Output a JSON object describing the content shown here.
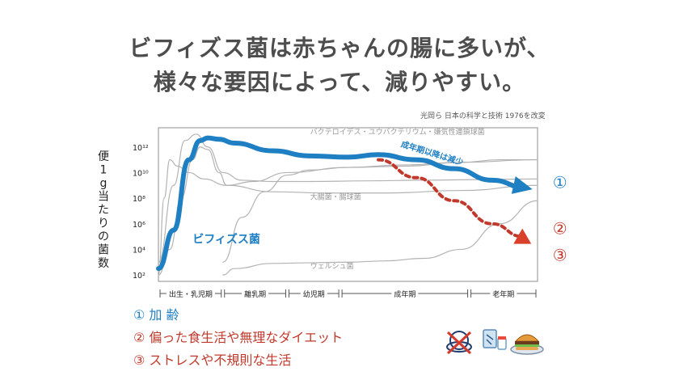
{
  "title": {
    "line1": "ビフィズス菌は赤ちゃんの腸に多いが、",
    "line2": "様々な要因によって、減りやすい。"
  },
  "source": "光岡ら 日本の科学と技術 1976を改変",
  "chart_data": {
    "type": "line",
    "ylabel": "便1g当たりの菌数",
    "y_scale": "log",
    "y_ticks": [
      {
        "exp": 12,
        "label": "10¹²"
      },
      {
        "exp": 10,
        "label": "10¹⁰"
      },
      {
        "exp": 8,
        "label": "10⁸"
      },
      {
        "exp": 6,
        "label": "10⁶"
      },
      {
        "exp": 4,
        "label": "10⁴"
      },
      {
        "exp": 2,
        "label": "10²"
      }
    ],
    "ylim": [
      1.5,
      13.5
    ],
    "xlim": [
      0,
      100
    ],
    "age_periods": [
      {
        "label": "出生・乳児期",
        "start": 0,
        "end": 17
      },
      {
        "label": "離乳期",
        "start": 17,
        "end": 34
      },
      {
        "label": "幼児期",
        "start": 34,
        "end": 48
      },
      {
        "label": "成年期",
        "start": 48,
        "end": 82
      },
      {
        "label": "老年期",
        "start": 82,
        "end": 100
      }
    ],
    "series": [
      {
        "name": "バクテロイデス・ユウバクテリウム・嫌気性連鎖球菌",
        "color": "#b3b3b3",
        "x": [
          0,
          3,
          6,
          9,
          11,
          13,
          16,
          18,
          25,
          34,
          50,
          65,
          80,
          90,
          100
        ],
        "y": [
          2.0,
          4.0,
          8.0,
          11.0,
          12.0,
          11.8,
          10.0,
          9.0,
          9.3,
          10.0,
          10.4,
          10.5,
          10.8,
          11.0,
          11.0
        ]
      },
      {
        "name": "",
        "color": "#b3b3b3",
        "x": [
          0,
          4,
          7,
          10,
          13,
          17,
          22,
          30,
          40,
          55,
          70,
          85,
          100
        ],
        "y": [
          3.0,
          9.0,
          12.5,
          13.0,
          12.0,
          10.0,
          9.4,
          9.3,
          9.3,
          9.35,
          9.4,
          9.45,
          9.5
        ]
      },
      {
        "name": "大腸菌・腸球菌",
        "color": "#b3b3b3",
        "x": [
          0,
          1.5,
          3,
          5,
          8,
          12,
          18,
          30,
          45,
          60,
          80,
          100
        ],
        "y": [
          2.0,
          8.0,
          11.0,
          10.5,
          10.0,
          9.5,
          9.0,
          8.5,
          8.4,
          8.4,
          8.6,
          9.0
        ]
      },
      {
        "name": "",
        "color": "#b3b3b3",
        "x": [
          17,
          22,
          28,
          34,
          40,
          50,
          65,
          80,
          100
        ],
        "y": [
          3.0,
          6.5,
          8.5,
          9.8,
          10.2,
          10.4,
          10.6,
          10.8,
          11.0
        ]
      },
      {
        "name": "ウェルシュ菌",
        "color": "#b3b3b3",
        "x": [
          17,
          20,
          30,
          40,
          50,
          60,
          70,
          80,
          90,
          100
        ],
        "y": [
          2.0,
          2.5,
          2.9,
          2.95,
          3.0,
          3.1,
          3.3,
          4.0,
          6.0,
          7.8
        ]
      },
      {
        "name": "ビフィズス菌",
        "color": "#1f7fc3",
        "width": 6,
        "x": [
          0,
          4,
          8,
          11,
          13,
          16,
          20,
          30,
          40,
          50,
          58,
          68,
          78,
          88,
          97
        ],
        "y": [
          2.5,
          5.5,
          11.0,
          12.5,
          12.7,
          12.6,
          12.3,
          11.7,
          11.3,
          11.2,
          11.4,
          11.0,
          10.3,
          9.4,
          8.8
        ]
      },
      {
        "name": "",
        "color": "#c0392b",
        "width": 4,
        "dashed": true,
        "x": [
          58,
          68,
          78,
          88,
          96
        ],
        "y": [
          11.0,
          9.6,
          7.8,
          6.0,
          5.0
        ]
      }
    ],
    "annotations": [
      {
        "text": "バクテロイデス・ユウバクテリウム・嫌気性連鎖球菌",
        "x": 40,
        "y": 13.0
      },
      {
        "text": "大腸菌・腸球菌",
        "x": 40,
        "y": 7.9
      },
      {
        "text": "ウェルシュ菌",
        "x": 40,
        "y": 2.5
      },
      {
        "text": "ビフィズス菌",
        "x": 9,
        "y": 4.5
      },
      {
        "text": "成年期以降は減少",
        "x": 72,
        "y": 11.3
      },
      {
        "text": "①",
        "x": 104,
        "y": 8.8
      },
      {
        "text": "②",
        "x": 104,
        "y": 5.2
      },
      {
        "text": "③",
        "x": 104,
        "y": 3.1
      }
    ]
  },
  "legend": [
    {
      "text": "① 加 齢"
    },
    {
      "text": "② 偏った食生活や無理なダイエット"
    },
    {
      "text": "③ ストレスや不規則な生活"
    }
  ],
  "icons": [
    "no-diet-icon",
    "medicine-icon",
    "hamburger-icon"
  ]
}
